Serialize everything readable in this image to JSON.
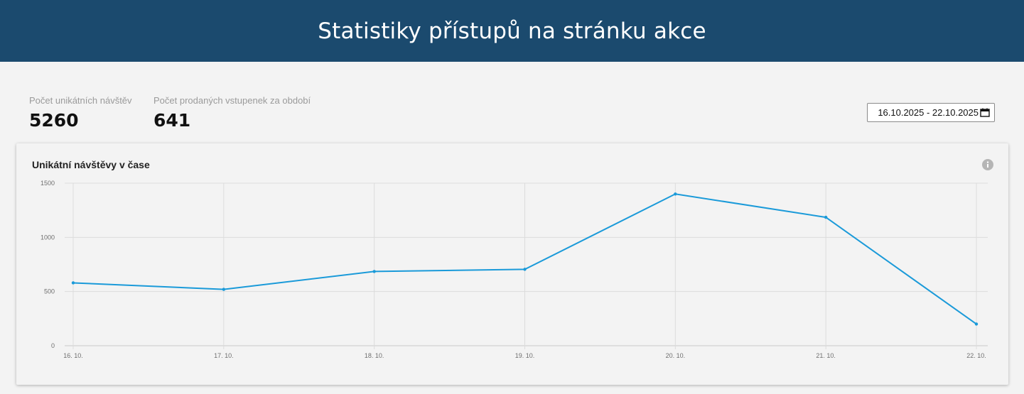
{
  "header": {
    "title": "Statistiky přístupů na stránku akce"
  },
  "stats": {
    "visits": {
      "label": "Počet unikátních návštěv",
      "value": "5260"
    },
    "tickets": {
      "label": "Počet prodaných vstupenek za období",
      "value": "641"
    }
  },
  "date_range": {
    "value": "16.10.2025 - 22.10.2025",
    "icon": "calendar-icon"
  },
  "card": {
    "title": "Unikátní návštěvy v čase",
    "info_icon": "info-icon"
  },
  "colors": {
    "header_bg": "#1b4a6e",
    "series_line": "#1a9ad9"
  },
  "chart_data": {
    "type": "line",
    "title": "Unikátní návštěvy v čase",
    "xlabel": "",
    "ylabel": "",
    "categories": [
      "16. 10.",
      "17. 10.",
      "18. 10.",
      "19. 10.",
      "20. 10.",
      "21. 10.",
      "22. 10."
    ],
    "values": [
      580,
      520,
      685,
      705,
      1400,
      1185,
      200
    ],
    "ylim": [
      0,
      1500
    ],
    "yticks": [
      0,
      500,
      1000,
      1500
    ],
    "grid": true,
    "legend": "none"
  }
}
